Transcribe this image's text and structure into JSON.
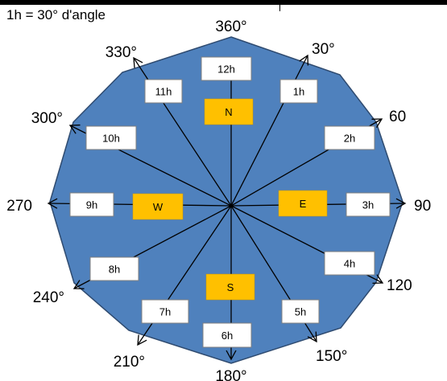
{
  "caption": "1h = 30° d'angle",
  "colors": {
    "polygon_fill": "#4F81BD",
    "polygon_stroke": "#2F4B70",
    "direction_fill": "#FFC000",
    "hour_box_fill": "#FFFFFF",
    "line": "#000000"
  },
  "hours": [
    {
      "id": "12h",
      "label": "12h"
    },
    {
      "id": "1h",
      "label": "1h"
    },
    {
      "id": "2h",
      "label": "2h"
    },
    {
      "id": "3h",
      "label": "3h"
    },
    {
      "id": "4h",
      "label": "4h"
    },
    {
      "id": "5h",
      "label": "5h"
    },
    {
      "id": "6h",
      "label": "6h"
    },
    {
      "id": "7h",
      "label": "7h"
    },
    {
      "id": "8h",
      "label": "8h"
    },
    {
      "id": "9h",
      "label": "9h"
    },
    {
      "id": "10h",
      "label": "10h"
    },
    {
      "id": "11h",
      "label": "11h"
    }
  ],
  "directions": [
    {
      "id": "north",
      "label": "N"
    },
    {
      "id": "east",
      "label": "E"
    },
    {
      "id": "south",
      "label": "S"
    },
    {
      "id": "west",
      "label": "W"
    }
  ],
  "angle_labels": [
    {
      "id": "a360",
      "label": "360°"
    },
    {
      "id": "a30",
      "label": "30°"
    },
    {
      "id": "a60",
      "label": "60"
    },
    {
      "id": "a90",
      "label": "90"
    },
    {
      "id": "a120",
      "label": "120"
    },
    {
      "id": "a150",
      "label": "150°"
    },
    {
      "id": "a180",
      "label": "180°"
    },
    {
      "id": "a210",
      "label": "210°"
    },
    {
      "id": "a240",
      "label": "240°"
    },
    {
      "id": "a270",
      "label": "270"
    },
    {
      "id": "a300",
      "label": "300°"
    },
    {
      "id": "a330",
      "label": "330°"
    }
  ]
}
